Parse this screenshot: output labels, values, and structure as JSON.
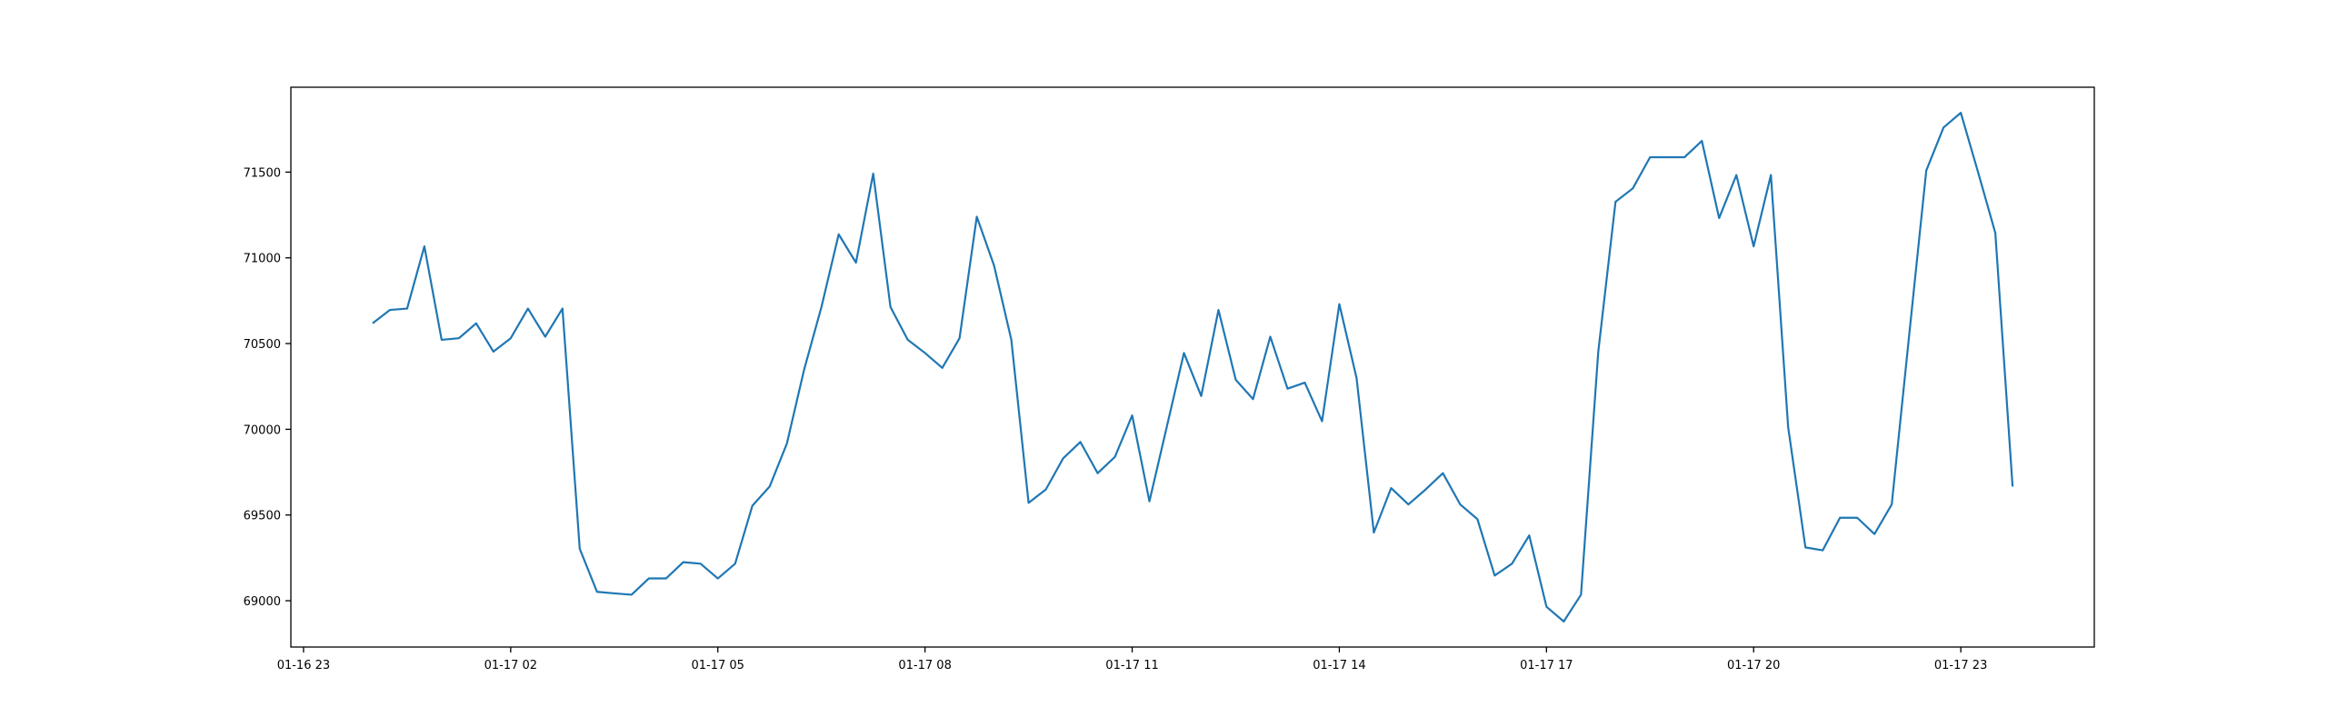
{
  "chart_data": {
    "type": "line",
    "color": "#1f77b4",
    "x": [
      "01-17 00:00",
      "01-17 00:15",
      "01-17 00:30",
      "01-17 00:45",
      "01-17 01:00",
      "01-17 01:15",
      "01-17 01:30",
      "01-17 01:45",
      "01-17 02:00",
      "01-17 02:15",
      "01-17 02:30",
      "01-17 02:45",
      "01-17 03:00",
      "01-17 03:15",
      "01-17 03:30",
      "01-17 03:45",
      "01-17 04:00",
      "01-17 04:15",
      "01-17 04:30",
      "01-17 04:45",
      "01-17 05:00",
      "01-17 05:15",
      "01-17 05:30",
      "01-17 05:45",
      "01-17 06:00",
      "01-17 06:15",
      "01-17 06:30",
      "01-17 06:45",
      "01-17 07:00",
      "01-17 07:15",
      "01-17 07:30",
      "01-17 07:45",
      "01-17 08:00",
      "01-17 08:15",
      "01-17 08:30",
      "01-17 08:45",
      "01-17 09:00",
      "01-17 09:15",
      "01-17 09:30",
      "01-17 09:45",
      "01-17 10:00",
      "01-17 10:15",
      "01-17 10:30",
      "01-17 10:45",
      "01-17 11:00",
      "01-17 11:15",
      "01-17 11:30",
      "01-17 11:45",
      "01-17 12:00",
      "01-17 12:15",
      "01-17 12:30",
      "01-17 12:45",
      "01-17 13:00",
      "01-17 13:15",
      "01-17 13:30",
      "01-17 13:45",
      "01-17 14:00",
      "01-17 14:15",
      "01-17 14:30",
      "01-17 14:45",
      "01-17 15:00",
      "01-17 15:15",
      "01-17 15:30",
      "01-17 15:45",
      "01-17 16:00",
      "01-17 16:15",
      "01-17 16:30",
      "01-17 16:45",
      "01-17 17:00",
      "01-17 17:15",
      "01-17 17:30",
      "01-17 17:45",
      "01-17 18:00",
      "01-17 18:15",
      "01-17 18:30",
      "01-17 18:45",
      "01-17 19:00",
      "01-17 19:15",
      "01-17 19:30",
      "01-17 19:45",
      "01-17 20:00",
      "01-17 20:15",
      "01-17 20:30",
      "01-17 20:45",
      "01-17 21:00",
      "01-17 21:15",
      "01-17 21:30",
      "01-17 21:45",
      "01-17 22:00",
      "01-17 22:15",
      "01-17 22:30",
      "01-17 22:45",
      "01-17 23:00",
      "01-17 23:15",
      "01-17 23:30",
      "01-17 23:45"
    ],
    "values": [
      70618,
      70696,
      70704,
      71067,
      70522,
      70531,
      70618,
      70453,
      70531,
      70704,
      70540,
      70704,
      69303,
      69052,
      69043,
      69035,
      69130,
      69130,
      69225,
      69216,
      69130,
      69216,
      69554,
      69666,
      69917,
      70349,
      70713,
      71137,
      70972,
      71491,
      70713,
      70522,
      70445,
      70358,
      70531,
      71240,
      70955,
      70522,
      69571,
      69649,
      69830,
      69926,
      69744,
      69839,
      70081,
      69580,
      70012,
      70445,
      70194,
      70696,
      70289,
      70176,
      70540,
      70237,
      70272,
      70047,
      70730,
      70298,
      69398,
      69657,
      69562,
      69649,
      69744,
      69562,
      69476,
      69147,
      69216,
      69381,
      68965,
      68879,
      69035,
      70453,
      71327,
      71405,
      71587,
      71587,
      71587,
      71682,
      71232,
      71483,
      71067,
      71483,
      70012,
      69311,
      69294,
      69484,
      69484,
      69389,
      69562,
      70540,
      71509,
      71760,
      71846,
      71500,
      71145,
      69666
    ],
    "xlim": [
      "01-16 22:49",
      "01-18 00:56"
    ],
    "xticks": [
      {
        "value": "01-16 23:00",
        "label": "01-16 23"
      },
      {
        "value": "01-17 02:00",
        "label": "01-17 02"
      },
      {
        "value": "01-17 05:00",
        "label": "01-17 05"
      },
      {
        "value": "01-17 08:00",
        "label": "01-17 08"
      },
      {
        "value": "01-17 11:00",
        "label": "01-17 11"
      },
      {
        "value": "01-17 14:00",
        "label": "01-17 14"
      },
      {
        "value": "01-17 17:00",
        "label": "01-17 17"
      },
      {
        "value": "01-17 20:00",
        "label": "01-17 20"
      },
      {
        "value": "01-17 23:00",
        "label": "01-17 23"
      }
    ],
    "ylim": [
      68730,
      71995
    ],
    "yticks": [
      69000,
      69500,
      70000,
      70500,
      71000,
      71500
    ]
  }
}
